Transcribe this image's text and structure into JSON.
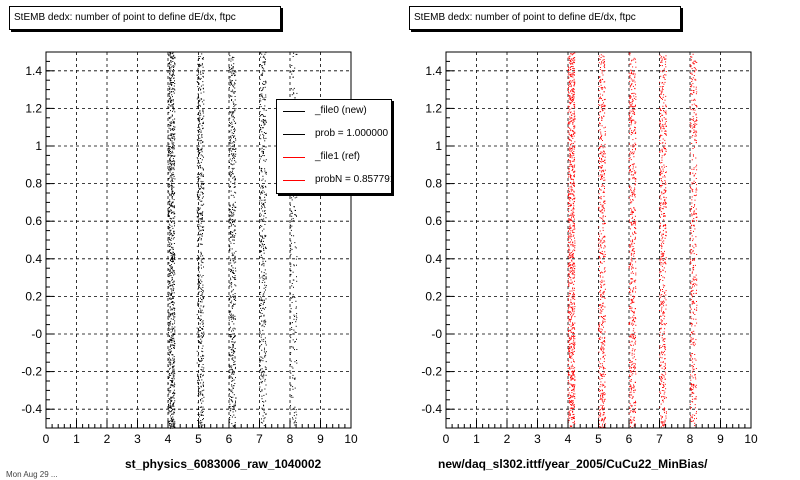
{
  "panels": [
    {
      "title": "StEMB dedx: number of point to define dE/dx, ftpc",
      "xlabel": "st_physics_6083006_raw_1040002"
    },
    {
      "title": "StEMB dedx: number of point to define dE/dx, ftpc",
      "xlabel": "new/daq_sl302.ittf/year_2005/CuCu22_MinBias/"
    }
  ],
  "legend": {
    "items": [
      {
        "label": "_file0 (new)",
        "color": "#000000"
      },
      {
        "label": "prob = 1.000000",
        "color": "#000000"
      },
      {
        "label": "_file1 (ref)",
        "color": "#ff0000"
      },
      {
        "label": "probN = 0.857791",
        "color": "#ff0000"
      }
    ]
  },
  "footer": "Mon Aug 29 ...",
  "chart_data": [
    {
      "type": "scatter",
      "title": "StEMB dedx: number of point to define dE/dx, ftpc",
      "xlabel": "st_physics_6083006_raw_1040002",
      "ylabel": "",
      "xlim": [
        0,
        10
      ],
      "ylim": [
        -0.5,
        1.5
      ],
      "xticks": [
        0,
        1,
        2,
        3,
        4,
        5,
        6,
        7,
        8,
        9,
        10
      ],
      "yticks": [
        -0.4,
        -0.2,
        0,
        0.2,
        0.4,
        0.6,
        0.8,
        1,
        1.2,
        1.4
      ],
      "ytick_labels": [
        "-0.4",
        "-0.2",
        "-0",
        "0.2",
        "0.4",
        "0.6",
        "0.8",
        "1",
        "1.2",
        "1.4"
      ],
      "grid": true,
      "legend_position": "top-right",
      "series": [
        {
          "name": "_file0 (new)",
          "color": "#000000",
          "bands": [
            {
              "x": 4.1,
              "density": 1.0
            },
            {
              "x": 5.05,
              "density": 0.6
            },
            {
              "x": 6.1,
              "density": 0.6
            },
            {
              "x": 7.1,
              "density": 0.45
            },
            {
              "x": 8.1,
              "density": 0.25
            }
          ]
        }
      ]
    },
    {
      "type": "scatter",
      "title": "StEMB dedx: number of point to define dE/dx, ftpc",
      "xlabel": "new/daq_sl302.ittf/year_2005/CuCu22_MinBias/",
      "ylabel": "",
      "xlim": [
        0,
        10
      ],
      "ylim": [
        -0.5,
        1.5
      ],
      "xticks": [
        0,
        1,
        2,
        3,
        4,
        5,
        6,
        7,
        8,
        9,
        10
      ],
      "yticks": [
        -0.4,
        -0.2,
        0,
        0.2,
        0.4,
        0.6,
        0.8,
        1,
        1.2,
        1.4
      ],
      "ytick_labels": [
        "-0.4",
        "-0.2",
        "-0",
        "0.2",
        "0.4",
        "0.6",
        "0.8",
        "1",
        "1.2",
        "1.4"
      ],
      "grid": true,
      "series": [
        {
          "name": "_file1 (ref)",
          "color": "#ff0000",
          "bands": [
            {
              "x": 4.1,
              "density": 1.0
            },
            {
              "x": 5.1,
              "density": 0.6
            },
            {
              "x": 6.1,
              "density": 0.6
            },
            {
              "x": 7.1,
              "density": 0.55
            },
            {
              "x": 8.1,
              "density": 0.45
            }
          ]
        }
      ]
    }
  ]
}
